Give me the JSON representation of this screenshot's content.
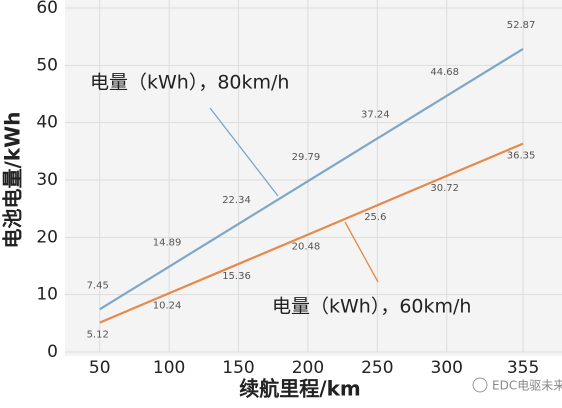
{
  "chart_data": {
    "type": "line",
    "x": [
      50,
      100,
      150,
      200,
      250,
      300,
      355
    ],
    "series": [
      {
        "name": "电量（kWh），80km/h",
        "color": "#7ea6c8",
        "values": [
          7.45,
          14.89,
          22.34,
          29.79,
          37.24,
          44.68,
          52.87
        ]
      },
      {
        "name": "电量（kWh），60km/h",
        "color": "#e8884a",
        "values": [
          5.12,
          10.24,
          15.36,
          20.48,
          25.6,
          30.72,
          36.35
        ]
      }
    ],
    "xlim": [
      25,
      378
    ],
    "ylim": [
      0,
      60
    ],
    "xticks": [
      50,
      100,
      150,
      200,
      250,
      300,
      355
    ],
    "yticks": [
      0,
      10,
      20,
      30,
      40,
      50,
      60
    ],
    "grid": true,
    "x_label": "续航里程/km",
    "y_label": "电池电量/kWh",
    "watermark": "EDC电驱未来"
  }
}
